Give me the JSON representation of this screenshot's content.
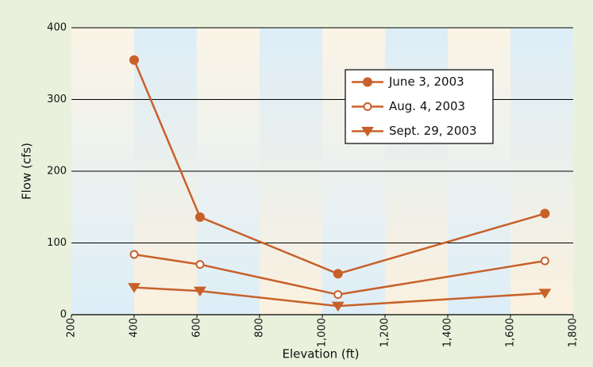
{
  "chart_data": {
    "type": "line",
    "x_label": "Elevation (ft)",
    "y_label": "Flow (cfs)",
    "xlim": [
      200,
      1800
    ],
    "xticks": [
      200,
      400,
      600,
      800,
      {
        "value": 1000,
        "label": "1,000"
      },
      {
        "value": 1200,
        "label": "1,200"
      },
      {
        "value": 1400,
        "label": "1,400"
      },
      {
        "value": 1600,
        "label": "1,600"
      },
      {
        "value": 1800,
        "label": "1,800"
      }
    ],
    "ylim": [
      0,
      400
    ],
    "yticks": [
      0,
      100,
      200,
      300,
      400
    ],
    "grid": true,
    "x": [
      400,
      610,
      1050,
      1710
    ],
    "series": [
      {
        "name": "June 3, 2003",
        "color": "#c8602a",
        "marker": "filled-circle",
        "values": [
          355,
          136,
          57,
          141
        ]
      },
      {
        "name": "Aug. 4, 2003",
        "color": "#c8602a",
        "marker": "open-circle",
        "values": [
          84,
          70,
          28,
          75
        ]
      },
      {
        "name": "Sept. 29, 2003",
        "color": "#c8602a",
        "marker": "triangle-down",
        "values": [
          38,
          33,
          12,
          30
        ]
      }
    ]
  }
}
